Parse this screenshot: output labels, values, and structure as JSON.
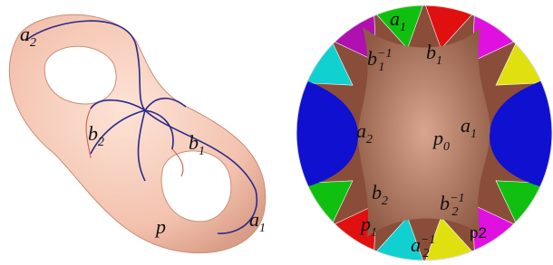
{
  "left_labels": [
    {
      "base": "a",
      "sub": "2"
    },
    {
      "base": "b",
      "sub": "2"
    },
    {
      "base": "b",
      "sub": "1"
    },
    {
      "base": "p"
    },
    {
      "base": "a",
      "sub": "1"
    }
  ],
  "right_labels": [
    {
      "base": "a",
      "sub": "1"
    },
    {
      "base": "b",
      "sub": "1",
      "sup": "−1"
    },
    {
      "base": "b",
      "sub": "1"
    },
    {
      "base": "a",
      "sub": "2"
    },
    {
      "base": "p",
      "sub": "0"
    },
    {
      "base": "a",
      "sub": "1"
    },
    {
      "base": "b",
      "sub": "2"
    },
    {
      "base": "b",
      "sub": "2",
      "sup": "−1"
    },
    {
      "base": "p",
      "sub": "1"
    },
    {
      "base": "a",
      "sub": "2",
      "sup": "−1"
    },
    {
      "plain": "p2"
    }
  ]
}
